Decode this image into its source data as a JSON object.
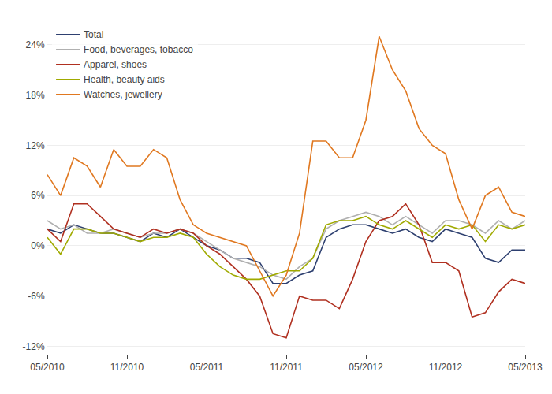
{
  "chart_data": {
    "type": "line",
    "categories": [
      "05/2010",
      null,
      null,
      null,
      null,
      null,
      "11/2010",
      null,
      null,
      null,
      null,
      null,
      "05/2011",
      null,
      null,
      null,
      null,
      null,
      "11/2011",
      null,
      null,
      null,
      null,
      null,
      "05/2012",
      null,
      null,
      null,
      null,
      null,
      "11/2012",
      null,
      null,
      null,
      null,
      null,
      "05/2013"
    ],
    "series": [
      {
        "name": "Total",
        "color": "#2e4070",
        "values": [
          2.0,
          1.5,
          2.5,
          2.0,
          1.5,
          1.5,
          1.0,
          0.5,
          1.5,
          1.0,
          2.0,
          1.0,
          0.0,
          -0.5,
          -1.5,
          -1.5,
          -2.0,
          -4.5,
          -4.5,
          -3.5,
          -3.0,
          1.0,
          2.0,
          2.5,
          2.5,
          2.0,
          1.5,
          2.0,
          1.0,
          0.5,
          2.0,
          1.5,
          1.0,
          -1.5,
          -2.0,
          -0.5,
          -0.5
        ]
      },
      {
        "name": "Food, beverages, tobacco",
        "color": "#b0b0b0",
        "values": [
          3.0,
          2.0,
          2.5,
          1.5,
          1.5,
          2.0,
          1.5,
          1.0,
          1.5,
          1.5,
          2.0,
          1.5,
          0.5,
          -0.5,
          -1.5,
          -2.0,
          -2.5,
          -3.5,
          -4.0,
          -2.5,
          -1.5,
          2.0,
          3.0,
          3.5,
          4.0,
          3.5,
          2.5,
          3.5,
          2.5,
          1.5,
          3.0,
          3.0,
          2.5,
          1.5,
          3.0,
          2.0,
          3.0
        ]
      },
      {
        "name": "Apparel, shoes",
        "color": "#b03020",
        "values": [
          2.0,
          0.5,
          5.0,
          5.0,
          3.5,
          2.0,
          1.5,
          1.0,
          2.0,
          1.5,
          2.0,
          1.5,
          0.0,
          -1.0,
          -2.5,
          -4.0,
          -6.0,
          -10.5,
          -11.0,
          -6.0,
          -6.5,
          -6.5,
          -7.5,
          -4.0,
          0.5,
          3.0,
          3.5,
          5.0,
          2.5,
          -2.0,
          -2.0,
          -3.0,
          -8.5,
          -8.0,
          -5.5,
          -4.0,
          -4.5
        ]
      },
      {
        "name": "Health, beauty aids",
        "color": "#a0aa00",
        "values": [
          1.0,
          -1.0,
          2.0,
          2.0,
          1.5,
          1.5,
          1.0,
          0.5,
          1.0,
          1.0,
          1.5,
          1.0,
          -1.0,
          -2.5,
          -3.5,
          -4.0,
          -4.0,
          -3.5,
          -3.0,
          -3.0,
          -1.5,
          2.5,
          3.0,
          3.0,
          3.5,
          2.5,
          2.0,
          3.0,
          2.0,
          1.0,
          2.5,
          2.0,
          2.5,
          0.5,
          2.5,
          2.0,
          2.5
        ]
      },
      {
        "name": "Watches, jewellery",
        "color": "#e07820",
        "values": [
          8.5,
          6.0,
          10.5,
          9.5,
          7.0,
          11.5,
          9.5,
          9.5,
          11.5,
          10.5,
          5.5,
          2.5,
          1.5,
          1.0,
          0.5,
          0.0,
          -3.0,
          -6.0,
          -3.5,
          1.5,
          12.5,
          12.5,
          10.5,
          10.5,
          15.0,
          25.0,
          21.0,
          18.5,
          14.0,
          12.0,
          11.0,
          5.5,
          2.0,
          6.0,
          7.0,
          4.0,
          3.5
        ]
      }
    ],
    "ylim": [
      -13,
      27
    ],
    "yticks": [
      {
        "value": -12,
        "label": "-12%"
      },
      {
        "value": -6,
        "label": "-6%"
      },
      {
        "value": 0,
        "label": "0%"
      },
      {
        "value": 6,
        "label": "6%"
      },
      {
        "value": 12,
        "label": "12%"
      },
      {
        "value": 18,
        "label": "18%"
      },
      {
        "value": 24,
        "label": "24%"
      }
    ],
    "grid": true,
    "legend": "upper left"
  }
}
